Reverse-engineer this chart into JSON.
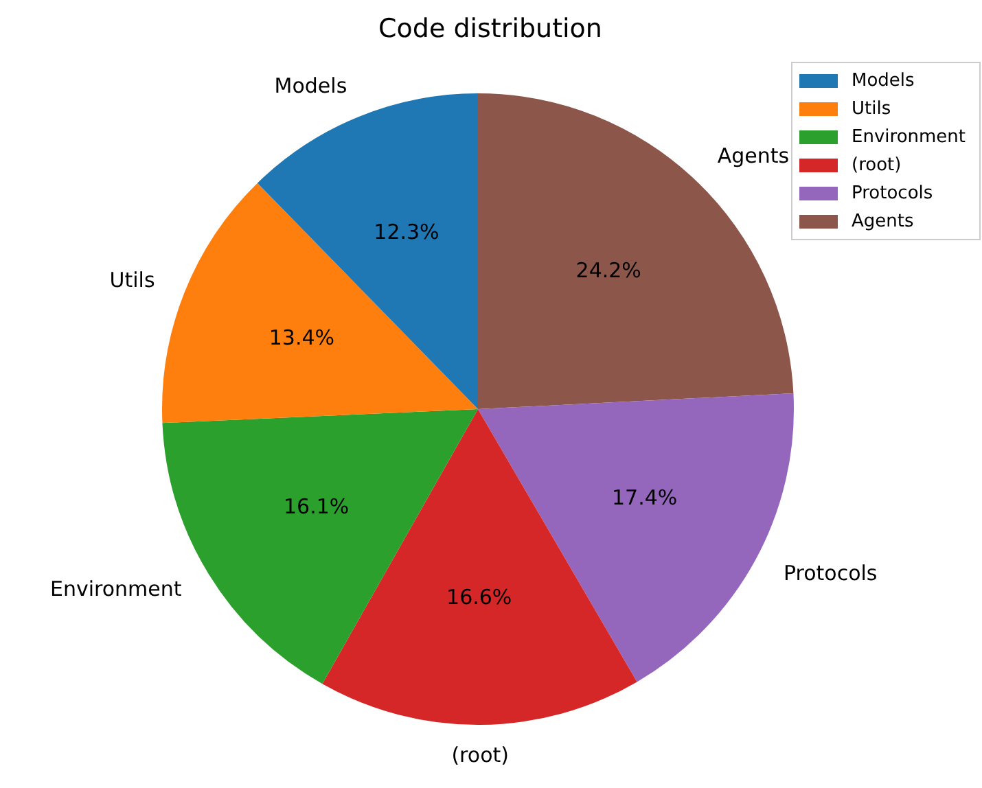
{
  "chart_data": {
    "type": "pie",
    "title": "Code distribution",
    "categories": [
      "Models",
      "Utils",
      "Environment",
      "(root)",
      "Protocols",
      "Agents"
    ],
    "values": [
      12.3,
      13.4,
      16.1,
      16.6,
      17.4,
      24.2
    ],
    "value_labels": [
      "12.3%",
      "13.4%",
      "16.1%",
      "16.6%",
      "17.4%",
      "24.2%"
    ],
    "colors": [
      "#1f77b4",
      "#ff7f0e",
      "#2ca02c",
      "#d62728",
      "#9467bd",
      "#8c564b"
    ],
    "legend": "top right"
  }
}
